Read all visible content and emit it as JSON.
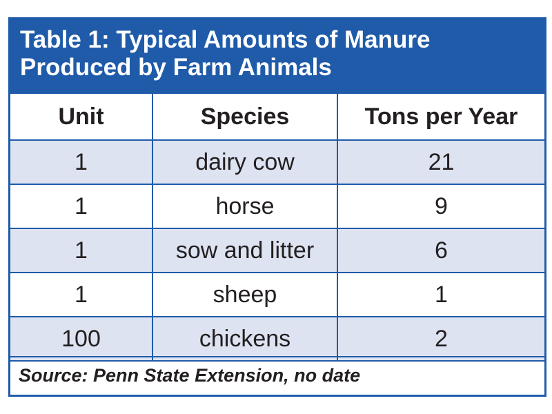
{
  "table": {
    "title_line1": "Table 1: Typical Amounts of Manure",
    "title_line2": "Produced by Farm Animals",
    "headers": [
      "Unit",
      "Species",
      "Tons per Year"
    ],
    "rows": [
      [
        "1",
        "dairy cow",
        "21"
      ],
      [
        "1",
        "horse",
        "9"
      ],
      [
        "1",
        "sow and litter",
        "6"
      ],
      [
        "1",
        "sheep",
        "1"
      ],
      [
        "100",
        "chickens",
        "2"
      ]
    ],
    "source": "Source: Penn State Extension, no date"
  },
  "colors": {
    "header_blue": "#1f5ba9",
    "stripe_row": "#dde3f1",
    "text": "#231f20"
  }
}
